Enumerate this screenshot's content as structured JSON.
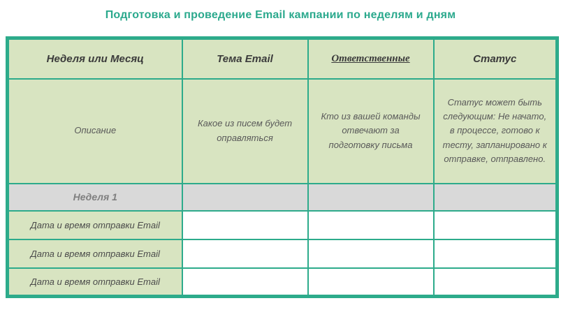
{
  "title": "Подготовка и проведение Email кампании по неделям и дням",
  "colors": {
    "accent_border": "#2DAB8B",
    "title_color": "#2BA98D",
    "cell_green": "#D8E4C1",
    "week_gray": "#D9D9D9",
    "header_text": "#3B3B3B",
    "desc_text": "#595959"
  },
  "table": {
    "headers": {
      "week": "Неделя или Месяц",
      "topic": "Тема Email",
      "responsible": "Ответственные",
      "status": "Статус"
    },
    "description_row": {
      "week": "Описание",
      "topic": "Какое из писем будет оправляться",
      "responsible": "Кто из вашей команды отвечают за подготовку письма",
      "status": "Статус может быть следующим: Не начато, в процессе, готово к тесту, запланировано к отправке, отправлено."
    },
    "week_row": {
      "label": "Неделя 1"
    },
    "data_rows": [
      {
        "label": "Дата и время отправки Email"
      },
      {
        "label": "Дата и время отправки Email"
      },
      {
        "label": "Дата и время отправки Email"
      }
    ]
  }
}
